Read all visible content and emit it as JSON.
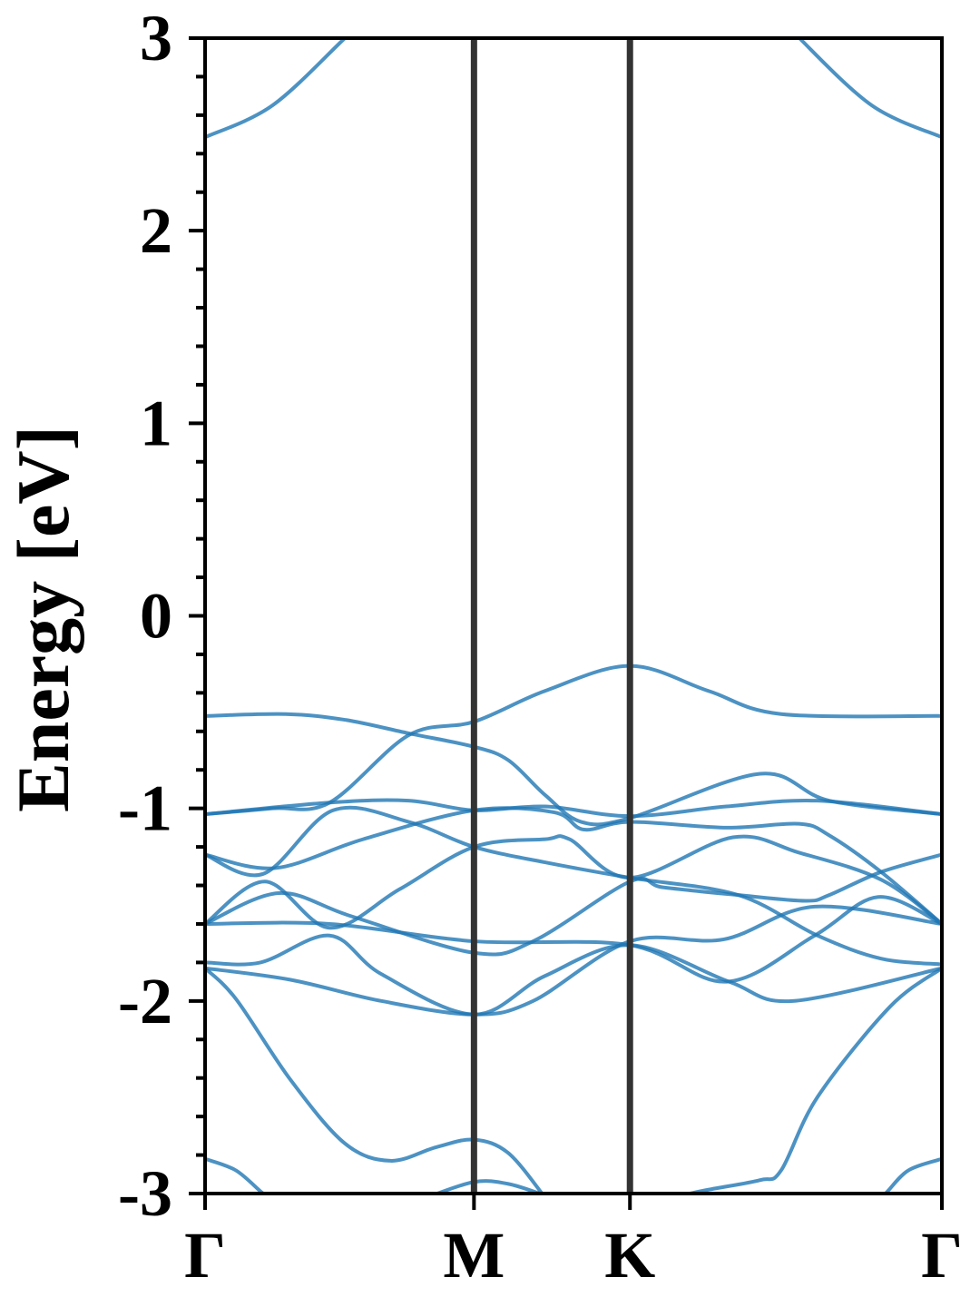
{
  "chart_data": {
    "type": "line",
    "title": "",
    "xlabel": "",
    "ylabel": "Energy [eV]",
    "ylim": [
      -3,
      3
    ],
    "xlim": [
      0,
      2.74
    ],
    "yticks": [
      3,
      2,
      1,
      0,
      -1,
      -2,
      -3
    ],
    "ytick_labels": [
      "3",
      "2",
      "1",
      "0",
      "-1",
      "-2",
      "-3"
    ],
    "yminor_step": 0.2,
    "high_symmetry_points": [
      {
        "label": "Γ",
        "k": 0
      },
      {
        "label": "M",
        "k": 1.0
      },
      {
        "label": "K",
        "k": 1.58
      },
      {
        "label": "Γ",
        "k": 2.74
      }
    ],
    "grid": false,
    "legend": "none",
    "colors": {
      "band": "#1f77b4",
      "kpoint_line": "#333333",
      "axes": "#000000"
    },
    "bands": [
      [
        [
          0,
          2.485
        ],
        [
          0.25,
          2.65
        ],
        [
          0.52,
          3.0
        ],
        [
          0.6,
          3.1
        ]
      ],
      [
        [
          2.74,
          2.485
        ],
        [
          2.48,
          2.65
        ],
        [
          2.21,
          3.0
        ],
        [
          2.15,
          3.1
        ]
      ],
      [
        [
          0,
          -1.03
        ],
        [
          0.25,
          -1.0
        ],
        [
          0.463,
          -0.97
        ],
        [
          0.757,
          -0.62
        ],
        [
          1,
          -0.55
        ],
        [
          1.264,
          -0.39
        ],
        [
          1.58,
          -0.26
        ],
        [
          1.872,
          -0.39
        ],
        [
          2.142,
          -0.51
        ],
        [
          2.74,
          -0.52
        ]
      ],
      [
        [
          0,
          -0.52
        ],
        [
          0.3,
          -0.51
        ],
        [
          0.52,
          -0.54
        ],
        [
          0.757,
          -0.61
        ],
        [
          1,
          -0.68
        ],
        [
          1.128,
          -0.75
        ],
        [
          1.264,
          -0.93
        ],
        [
          1.399,
          -1.07
        ],
        [
          1.58,
          -1.05
        ],
        [
          2.064,
          -0.82
        ],
        [
          2.321,
          -0.96
        ],
        [
          2.74,
          -1.03
        ]
      ],
      [
        [
          0,
          -1.03
        ],
        [
          0.463,
          -0.97
        ],
        [
          0.757,
          -0.96
        ],
        [
          1,
          -1.01
        ],
        [
          1.264,
          -0.99
        ],
        [
          1.58,
          -1.04
        ],
        [
          1.939,
          -0.99
        ],
        [
          2.277,
          -0.96
        ],
        [
          2.74,
          -1.03
        ]
      ],
      [
        [
          0,
          -1.24
        ],
        [
          0.26,
          -1.31
        ],
        [
          0.588,
          -1.16
        ],
        [
          1,
          -1.01
        ],
        [
          1.297,
          -1.02
        ],
        [
          1.409,
          -1.11
        ],
        [
          1.58,
          -1.07
        ],
        [
          1.939,
          -1.1
        ],
        [
          2.209,
          -1.08
        ],
        [
          2.321,
          -1.14
        ],
        [
          2.514,
          -1.33
        ],
        [
          2.74,
          -1.6
        ]
      ],
      [
        [
          0,
          -1.24
        ],
        [
          0.216,
          -1.34
        ],
        [
          0.476,
          -1.01
        ],
        [
          0.757,
          -1.07
        ],
        [
          1,
          -1.2
        ],
        [
          1.264,
          -1.28
        ],
        [
          1.58,
          -1.36
        ],
        [
          1.983,
          -1.45
        ],
        [
          2.277,
          -1.66
        ],
        [
          2.514,
          -1.78
        ],
        [
          2.74,
          -1.81
        ]
      ],
      [
        [
          0,
          -1.6
        ],
        [
          0.223,
          -1.38
        ],
        [
          0.463,
          -1.62
        ],
        [
          0.723,
          -1.42
        ],
        [
          1,
          -1.2
        ],
        [
          1.264,
          -1.16
        ],
        [
          1.355,
          -1.16
        ],
        [
          1.58,
          -1.36
        ],
        [
          1.963,
          -1.15
        ],
        [
          2.209,
          -1.23
        ],
        [
          2.514,
          -1.37
        ],
        [
          2.74,
          -1.6
        ]
      ],
      [
        [
          0,
          -1.6
        ],
        [
          0.274,
          -1.44
        ],
        [
          0.544,
          -1.56
        ],
        [
          1,
          -1.75
        ],
        [
          1.22,
          -1.69
        ],
        [
          1.58,
          -1.38
        ],
        [
          1.703,
          -1.41
        ],
        [
          1.983,
          -1.45
        ],
        [
          2.233,
          -1.48
        ],
        [
          2.321,
          -1.45
        ],
        [
          2.514,
          -1.33
        ],
        [
          2.74,
          -1.24
        ]
      ],
      [
        [
          0,
          -1.6
        ],
        [
          0.463,
          -1.6
        ],
        [
          1,
          -1.69
        ],
        [
          1.58,
          -1.71
        ],
        [
          1.939,
          -1.9
        ],
        [
          2.267,
          -1.66
        ],
        [
          2.503,
          -1.46
        ],
        [
          2.74,
          -1.6
        ]
      ],
      [
        [
          0,
          -1.83
        ],
        [
          0.318,
          -1.89
        ],
        [
          0.655,
          -2.0
        ],
        [
          1,
          -2.07
        ],
        [
          1.22,
          -2.0
        ],
        [
          1.58,
          -1.69
        ],
        [
          1.929,
          -1.68
        ],
        [
          2.267,
          -1.51
        ],
        [
          2.74,
          -1.6
        ]
      ],
      [
        [
          0,
          -1.8
        ],
        [
          0.206,
          -1.8
        ],
        [
          0.463,
          -1.66
        ],
        [
          0.655,
          -1.86
        ],
        [
          1,
          -2.07
        ],
        [
          1.264,
          -1.87
        ],
        [
          1.58,
          -1.71
        ],
        [
          1.949,
          -1.9
        ],
        [
          2.186,
          -2.0
        ],
        [
          2.74,
          -1.83
        ]
      ],
      [
        [
          0,
          -1.83
        ],
        [
          0.115,
          -1.99
        ],
        [
          0.318,
          -2.41
        ],
        [
          0.52,
          -2.74
        ],
        [
          0.689,
          -2.83
        ],
        [
          0.858,
          -2.76
        ],
        [
          1,
          -2.72
        ],
        [
          1.128,
          -2.79
        ],
        [
          1.264,
          -3.02
        ]
      ],
      [
        [
          2.74,
          -1.83
        ],
        [
          2.547,
          -2.03
        ],
        [
          2.277,
          -2.5
        ],
        [
          2.142,
          -2.88
        ],
        [
          2.064,
          -2.93
        ],
        [
          1.872,
          -2.98
        ],
        [
          1.736,
          -3.02
        ]
      ],
      [
        [
          0,
          -2.82
        ],
        [
          0.115,
          -2.88
        ],
        [
          0.216,
          -3.0
        ],
        [
          0.25,
          -3.02
        ]
      ],
      [
        [
          2.74,
          -2.82
        ],
        [
          2.615,
          -2.88
        ],
        [
          2.53,
          -3.0
        ],
        [
          2.5,
          -3.02
        ]
      ],
      [
        [
          0.824,
          -3.02
        ],
        [
          1,
          -2.94
        ],
        [
          1.128,
          -2.95
        ],
        [
          1.264,
          -3.01
        ]
      ]
    ]
  }
}
